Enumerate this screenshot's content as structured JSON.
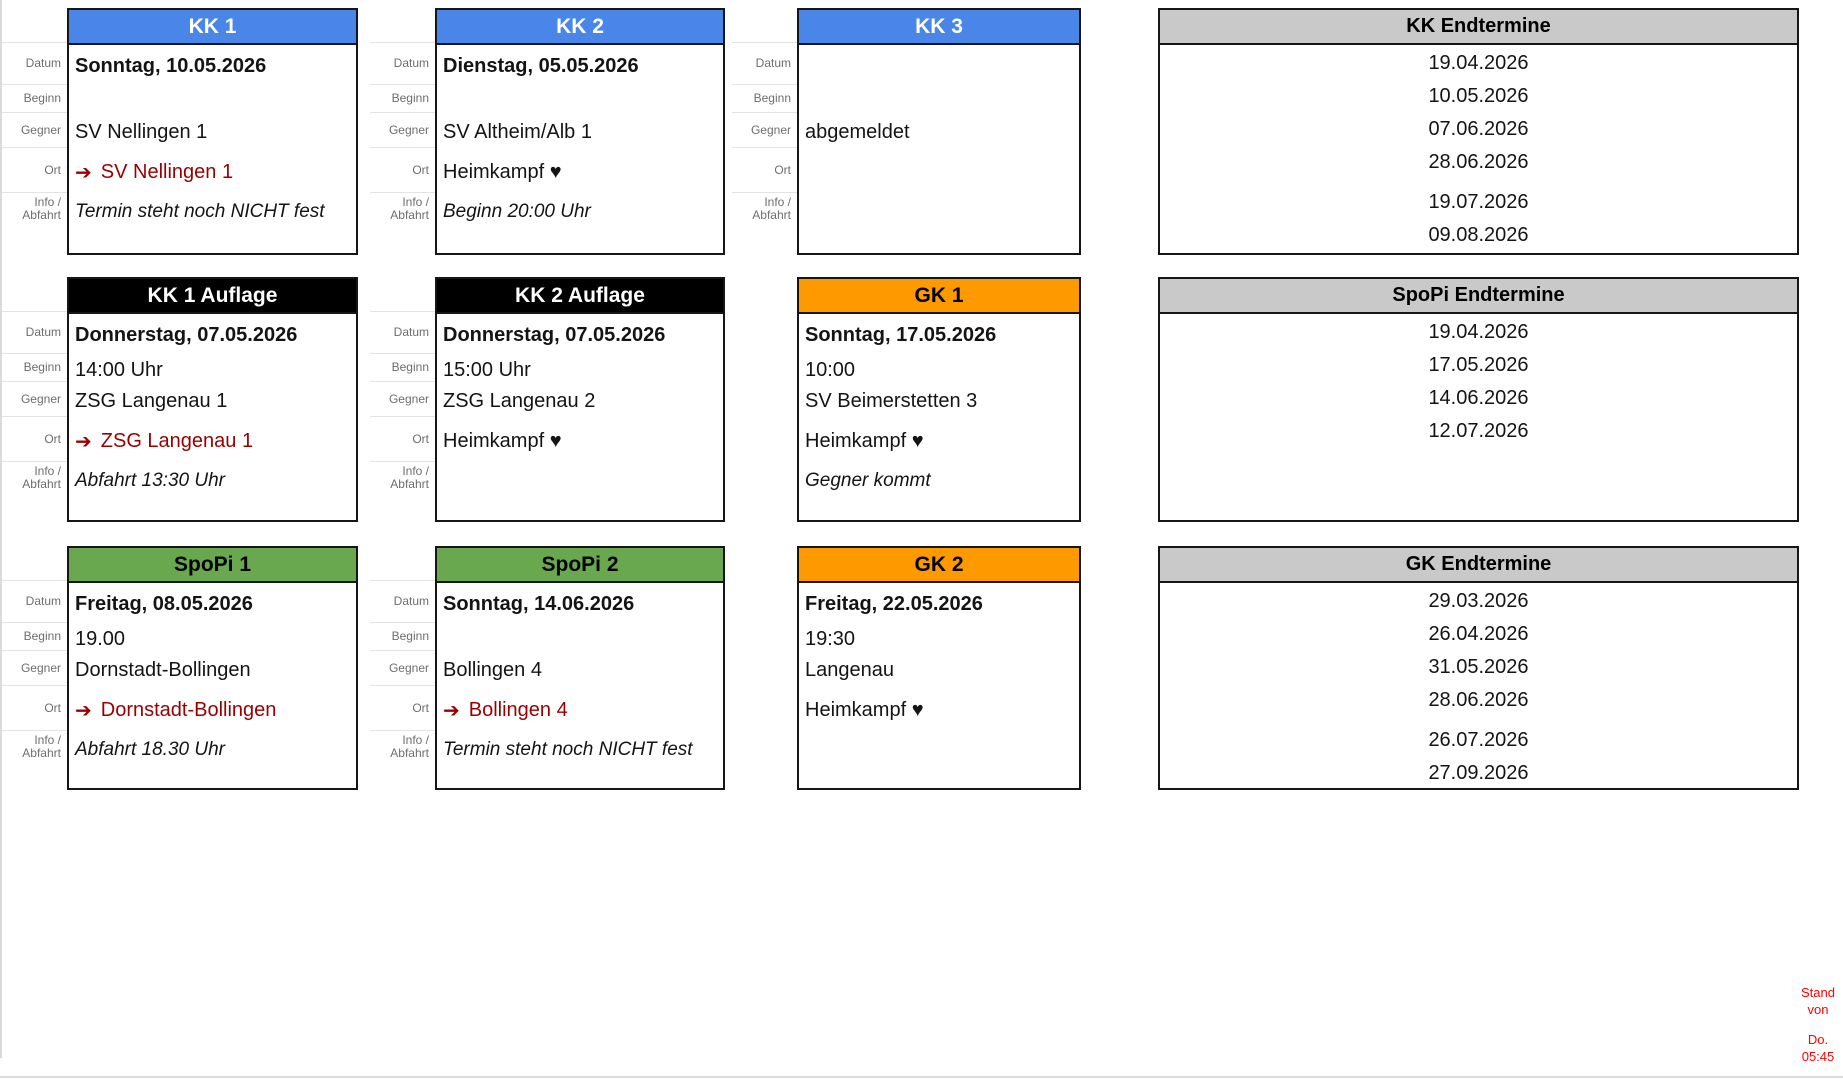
{
  "labels": {
    "datum": "Datum",
    "beginn": "Beginn",
    "gegner": "Gegner",
    "ort": "Ort",
    "info_line1": "Info /",
    "info_line2": "Abfahrt"
  },
  "colors": {
    "kk_header": "#4A86E8",
    "kk_header_text": "#FFFFFF",
    "auflage_header": "#000000",
    "auflage_header_text": "#FFFFFF",
    "gk_header": "#FF9900",
    "gk_header_text": "#000000",
    "spopi_header": "#6AA84F",
    "spopi_header_text": "#000000",
    "endtermine_header": "#C9C9C9",
    "away_text": "#990000",
    "status_note_text": "#FF0000"
  },
  "cards": [
    {
      "title": "KK 1",
      "theme": "kk",
      "col": 1,
      "row": 1,
      "show_labels": true,
      "datum": "Sonntag, 10.05.2026",
      "beginn": "",
      "gegner": "SV Nellingen 1",
      "ort_away": true,
      "ort_arrow": "➔",
      "ort": "SV Nellingen 1",
      "info": "Termin steht noch NICHT fest"
    },
    {
      "title": "KK 2",
      "theme": "kk",
      "col": 2,
      "row": 1,
      "show_labels": true,
      "datum": "Dienstag, 05.05.2026",
      "beginn": "",
      "gegner": "SV Altheim/Alb 1",
      "ort_away": false,
      "ort_arrow": "",
      "ort": "Heimkampf ♥",
      "info": "Beginn 20:00 Uhr"
    },
    {
      "title": "KK 3",
      "theme": "kk",
      "col": 3,
      "row": 1,
      "show_labels": true,
      "datum": "",
      "beginn": "",
      "gegner": "abgemeldet",
      "ort_away": false,
      "ort_arrow": "",
      "ort": "",
      "info": ""
    },
    {
      "title": "KK 1 Auflage",
      "theme": "auflage",
      "col": 1,
      "row": 2,
      "show_labels": true,
      "datum": "Donnerstag, 07.05.2026",
      "beginn": "14:00 Uhr",
      "gegner": "ZSG Langenau 1",
      "ort_away": true,
      "ort_arrow": "➔",
      "ort": "ZSG Langenau 1",
      "info": "Abfahrt 13:30 Uhr"
    },
    {
      "title": "KK 2 Auflage",
      "theme": "auflage",
      "col": 2,
      "row": 2,
      "show_labels": true,
      "datum": "Donnerstag, 07.05.2026",
      "beginn": "15:00 Uhr",
      "gegner": "ZSG Langenau 2",
      "ort_away": false,
      "ort_arrow": "",
      "ort": "Heimkampf ♥",
      "info": ""
    },
    {
      "title": "GK 1",
      "theme": "gk",
      "col": 3,
      "row": 2,
      "show_labels": false,
      "datum": "Sonntag, 17.05.2026",
      "beginn": "10:00",
      "gegner": "SV Beimerstetten 3",
      "ort_away": false,
      "ort_arrow": "",
      "ort": "Heimkampf ♥",
      "info": "Gegner kommt"
    },
    {
      "title": "SpoPi 1",
      "theme": "spopi",
      "col": 1,
      "row": 3,
      "show_labels": true,
      "datum": "Freitag, 08.05.2026",
      "beginn": "19.00",
      "gegner": "Dornstadt-Bollingen",
      "ort_away": true,
      "ort_arrow": "➔",
      "ort": "Dornstadt-Bollingen",
      "info": "Abfahrt 18.30 Uhr"
    },
    {
      "title": "SpoPi 2",
      "theme": "spopi",
      "col": 2,
      "row": 3,
      "show_labels": true,
      "datum": "Sonntag, 14.06.2026",
      "beginn": "",
      "gegner": "Bollingen 4",
      "ort_away": true,
      "ort_arrow": "➔",
      "ort": "Bollingen 4",
      "info": "Termin steht noch NICHT fest"
    },
    {
      "title": "GK 2",
      "theme": "gk",
      "col": 3,
      "row": 3,
      "show_labels": false,
      "datum": "Freitag, 22.05.2026",
      "beginn": "19:30",
      "gegner": "Langenau",
      "ort_away": false,
      "ort_arrow": "",
      "ort": "Heimkampf ♥",
      "info": ""
    }
  ],
  "panels": [
    {
      "title": "KK Endtermine",
      "row": 1,
      "groups": [
        [
          "19.04.2026",
          "10.05.2026",
          "07.06.2026",
          "28.06.2026"
        ],
        [
          "19.07.2026",
          "09.08.2026"
        ]
      ]
    },
    {
      "title": "SpoPi Endtermine",
      "row": 2,
      "groups": [
        [
          "19.04.2026",
          "17.05.2026",
          "14.06.2026",
          "12.07.2026"
        ]
      ]
    },
    {
      "title": "GK Endtermine",
      "row": 3,
      "groups": [
        [
          "29.03.2026",
          "26.04.2026",
          "31.05.2026",
          "28.06.2026"
        ],
        [
          "26.07.2026",
          "27.09.2026"
        ]
      ]
    }
  ],
  "status_note": {
    "line1": "Stand von",
    "line2": "Do. 05:45"
  }
}
